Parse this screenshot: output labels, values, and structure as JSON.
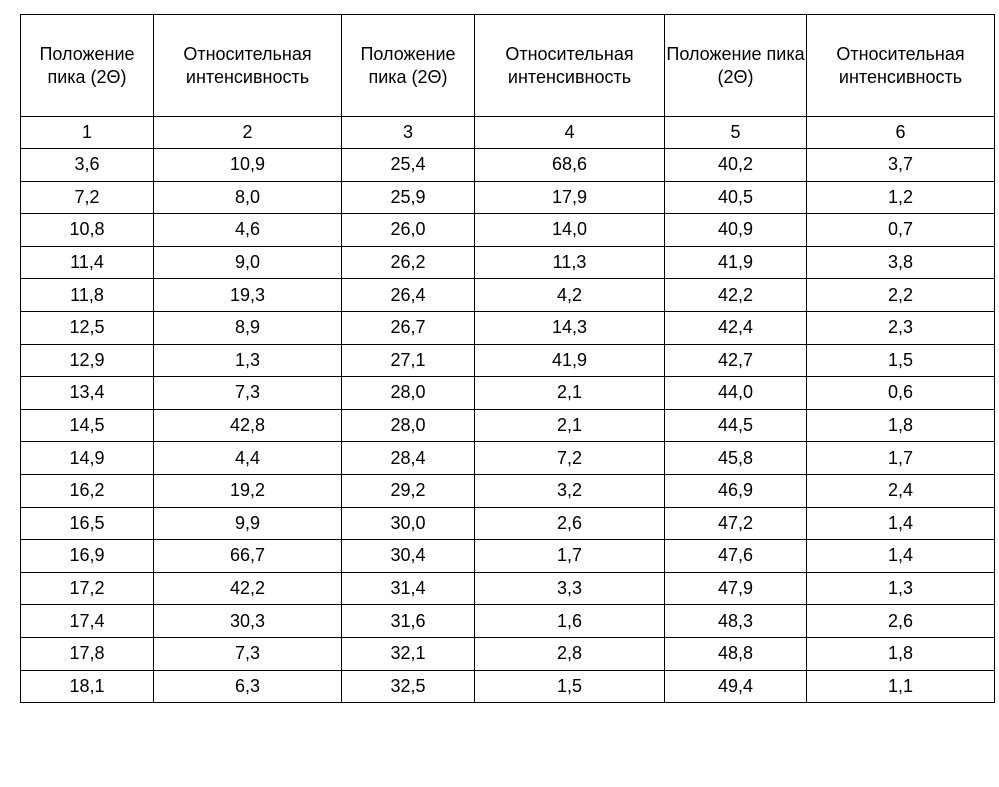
{
  "table": {
    "headers": [
      "Положение пика (2Θ)",
      "Относительная интенсивность",
      "Положение пика (2Θ)",
      "Относительная интенсивность",
      "Положение пика (2Θ)",
      "Относительная интенсивность"
    ],
    "column_numbers": [
      "1",
      "2",
      "3",
      "4",
      "5",
      "6"
    ],
    "rows": [
      [
        "3,6",
        "10,9",
        "25,4",
        "68,6",
        "40,2",
        "3,7"
      ],
      [
        "7,2",
        "8,0",
        "25,9",
        "17,9",
        "40,5",
        "1,2"
      ],
      [
        "10,8",
        "4,6",
        "26,0",
        "14,0",
        "40,9",
        "0,7"
      ],
      [
        "11,4",
        "9,0",
        "26,2",
        "11,3",
        "41,9",
        "3,8"
      ],
      [
        "11,8",
        "19,3",
        "26,4",
        "4,2",
        "42,2",
        "2,2"
      ],
      [
        "12,5",
        "8,9",
        "26,7",
        "14,3",
        "42,4",
        "2,3"
      ],
      [
        "12,9",
        "1,3",
        "27,1",
        "41,9",
        "42,7",
        "1,5"
      ],
      [
        "13,4",
        "7,3",
        "28,0",
        "2,1",
        "44,0",
        "0,6"
      ],
      [
        "14,5",
        "42,8",
        "28,0",
        "2,1",
        "44,5",
        "1,8"
      ],
      [
        "14,9",
        "4,4",
        "28,4",
        "7,2",
        "45,8",
        "1,7"
      ],
      [
        "16,2",
        "19,2",
        "29,2",
        "3,2",
        "46,9",
        "2,4"
      ],
      [
        "16,5",
        "9,9",
        "30,0",
        "2,6",
        "47,2",
        "1,4"
      ],
      [
        "16,9",
        "66,7",
        "30,4",
        "1,7",
        "47,6",
        "1,4"
      ],
      [
        "17,2",
        "42,2",
        "31,4",
        "3,3",
        "47,9",
        "1,3"
      ],
      [
        "17,4",
        "30,3",
        "31,6",
        "1,6",
        "48,3",
        "2,6"
      ],
      [
        "17,8",
        "7,3",
        "32,1",
        "2,8",
        "48,8",
        "1,8"
      ],
      [
        "18,1",
        "6,3",
        "32,5",
        "1,5",
        "49,4",
        "1,1"
      ]
    ]
  }
}
